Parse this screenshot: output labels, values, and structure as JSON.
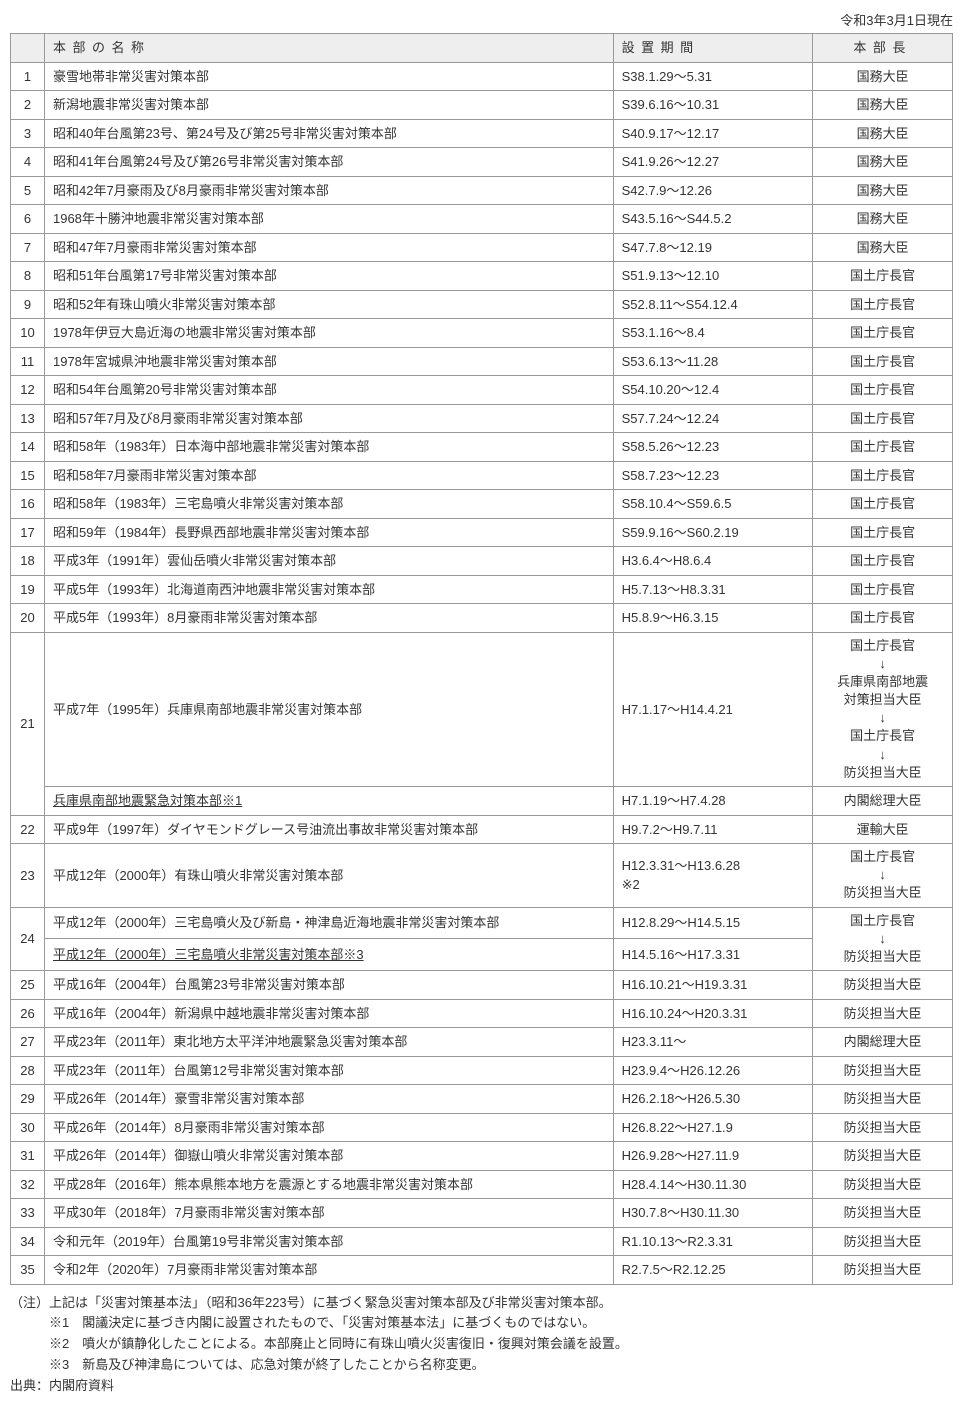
{
  "date_label": "令和3年3月1日現在",
  "headers": {
    "name": "本部の名称",
    "period": "設置期間",
    "head": "本部長"
  },
  "rows": [
    {
      "n": "1",
      "name": "豪雪地帯非常災害対策本部",
      "period": "S38.1.29～5.31",
      "head": "国務大臣"
    },
    {
      "n": "2",
      "name": "新潟地震非常災害対策本部",
      "period": "S39.6.16～10.31",
      "head": "国務大臣"
    },
    {
      "n": "3",
      "name": "昭和40年台風第23号、第24号及び第25号非常災害対策本部",
      "period": "S40.9.17～12.17",
      "head": "国務大臣"
    },
    {
      "n": "4",
      "name": "昭和41年台風第24号及び第26号非常災害対策本部",
      "period": "S41.9.26～12.27",
      "head": "国務大臣"
    },
    {
      "n": "5",
      "name": "昭和42年7月豪雨及び8月豪雨非常災害対策本部",
      "period": "S42.7.9～12.26",
      "head": "国務大臣"
    },
    {
      "n": "6",
      "name": "1968年十勝沖地震非常災害対策本部",
      "period": "S43.5.16～S44.5.2",
      "head": "国務大臣"
    },
    {
      "n": "7",
      "name": "昭和47年7月豪雨非常災害対策本部",
      "period": "S47.7.8～12.19",
      "head": "国務大臣"
    },
    {
      "n": "8",
      "name": "昭和51年台風第17号非常災害対策本部",
      "period": "S51.9.13～12.10",
      "head": "国土庁長官"
    },
    {
      "n": "9",
      "name": "昭和52年有珠山噴火非常災害対策本部",
      "period": "S52.8.11～S54.12.4",
      "head": "国土庁長官"
    },
    {
      "n": "10",
      "name": "1978年伊豆大島近海の地震非常災害対策本部",
      "period": "S53.1.16～8.4",
      "head": "国土庁長官"
    },
    {
      "n": "11",
      "name": "1978年宮城県沖地震非常災害対策本部",
      "period": "S53.6.13～11.28",
      "head": "国土庁長官"
    },
    {
      "n": "12",
      "name": "昭和54年台風第20号非常災害対策本部",
      "period": "S54.10.20～12.4",
      "head": "国土庁長官"
    },
    {
      "n": "13",
      "name": "昭和57年7月及び8月豪雨非常災害対策本部",
      "period": "S57.7.24～12.24",
      "head": "国土庁長官"
    },
    {
      "n": "14",
      "name": "昭和58年（1983年）日本海中部地震非常災害対策本部",
      "period": "S58.5.26～12.23",
      "head": "国土庁長官"
    },
    {
      "n": "15",
      "name": "昭和58年7月豪雨非常災害対策本部",
      "period": "S58.7.23～12.23",
      "head": "国土庁長官"
    },
    {
      "n": "16",
      "name": "昭和58年（1983年）三宅島噴火非常災害対策本部",
      "period": "S58.10.4～S59.6.5",
      "head": "国土庁長官"
    },
    {
      "n": "17",
      "name": "昭和59年（1984年）長野県西部地震非常災害対策本部",
      "period": "S59.9.16～S60.2.19",
      "head": "国土庁長官"
    },
    {
      "n": "18",
      "name": "平成3年（1991年）雲仙岳噴火非常災害対策本部",
      "period": "H3.6.4～H8.6.4",
      "head": "国土庁長官"
    },
    {
      "n": "19",
      "name": "平成5年（1993年）北海道南西沖地震非常災害対策本部",
      "period": "H5.7.13～H8.3.31",
      "head": "国土庁長官"
    },
    {
      "n": "20",
      "name": "平成5年（1993年）8月豪雨非常災害対策本部",
      "period": "H5.8.9～H6.3.15",
      "head": "国土庁長官"
    }
  ],
  "row21": {
    "n": "21",
    "name1": "平成7年（1995年）兵庫県南部地震非常災害対策本部",
    "period1": "H7.1.17～H14.4.21",
    "head1": "国土庁長官\n↓\n兵庫県南部地震\n対策担当大臣\n↓\n国土庁長官\n↓\n防災担当大臣",
    "name2": "兵庫県南部地震緊急対策本部※1",
    "period2": "H7.1.19～H7.4.28",
    "head2": "内閣総理大臣"
  },
  "row22": {
    "n": "22",
    "name": "平成9年（1997年）ダイヤモンドグレース号油流出事故非常災害対策本部",
    "period": "H9.7.2～H9.7.11",
    "head": "運輸大臣"
  },
  "row23": {
    "n": "23",
    "name": "平成12年（2000年）有珠山噴火非常災害対策本部",
    "period": "H12.3.31～H13.6.28\n※2",
    "head": "国土庁長官\n↓\n防災担当大臣"
  },
  "row24": {
    "n": "24",
    "name1": "平成12年（2000年）三宅島噴火及び新島・神津島近海地震非常災害対策本部",
    "period1": "H12.8.29～H14.5.15",
    "head1": "国土庁長官\n↓\n防災担当大臣",
    "name2": "平成12年（2000年）三宅島噴火非常災害対策本部※3",
    "period2": "H14.5.16～H17.3.31"
  },
  "rows_after": [
    {
      "n": "25",
      "name": "平成16年（2004年）台風第23号非常災害対策本部",
      "period": "H16.10.21～H19.3.31",
      "head": "防災担当大臣"
    },
    {
      "n": "26",
      "name": "平成16年（2004年）新潟県中越地震非常災害対策本部",
      "period": "H16.10.24～H20.3.31",
      "head": "防災担当大臣"
    },
    {
      "n": "27",
      "name": "平成23年（2011年）東北地方太平洋沖地震緊急災害対策本部",
      "period": "H23.3.11～",
      "head": "内閣総理大臣"
    },
    {
      "n": "28",
      "name": "平成23年（2011年）台風第12号非常災害対策本部",
      "period": "H23.9.4～H26.12.26",
      "head": "防災担当大臣"
    },
    {
      "n": "29",
      "name": "平成26年（2014年）豪雪非常災害対策本部",
      "period": "H26.2.18～H26.5.30",
      "head": "防災担当大臣"
    },
    {
      "n": "30",
      "name": "平成26年（2014年）8月豪雨非常災害対策本部",
      "period": "H26.8.22～H27.1.9",
      "head": "防災担当大臣"
    },
    {
      "n": "31",
      "name": "平成26年（2014年）御嶽山噴火非常災害対策本部",
      "period": "H26.9.28～H27.11.9",
      "head": "防災担当大臣"
    },
    {
      "n": "32",
      "name": "平成28年（2016年）熊本県熊本地方を震源とする地震非常災害対策本部",
      "period": "H28.4.14～H30.11.30",
      "head": "防災担当大臣"
    },
    {
      "n": "33",
      "name": "平成30年（2018年）7月豪雨非常災害対策本部",
      "period": "H30.7.8～H30.11.30",
      "head": "防災担当大臣"
    },
    {
      "n": "34",
      "name": "令和元年（2019年）台風第19号非常災害対策本部",
      "period": "R1.10.13～R2.3.31",
      "head": "防災担当大臣"
    },
    {
      "n": "35",
      "name": "令和2年（2020年）7月豪雨非常災害対策本部",
      "period": "R2.7.5～R2.12.25",
      "head": "防災担当大臣"
    }
  ],
  "notes": {
    "note_label": "（注）上記は「災害対策基本法」（昭和36年223号）に基づく緊急災害対策本部及び非常災害対策本部。",
    "note1": "※1　閣議決定に基づき内閣に設置されたもので、「災害対策基本法」に基づくものではない。",
    "note2": "※2　噴火が鎮静化したことによる。本部廃止と同時に有珠山噴火災害復旧・復興対策会議を設置。",
    "note3": "※3　新島及び神津島については、応急対策が終了したことから名称変更。",
    "source": "出典：内閣府資料"
  }
}
